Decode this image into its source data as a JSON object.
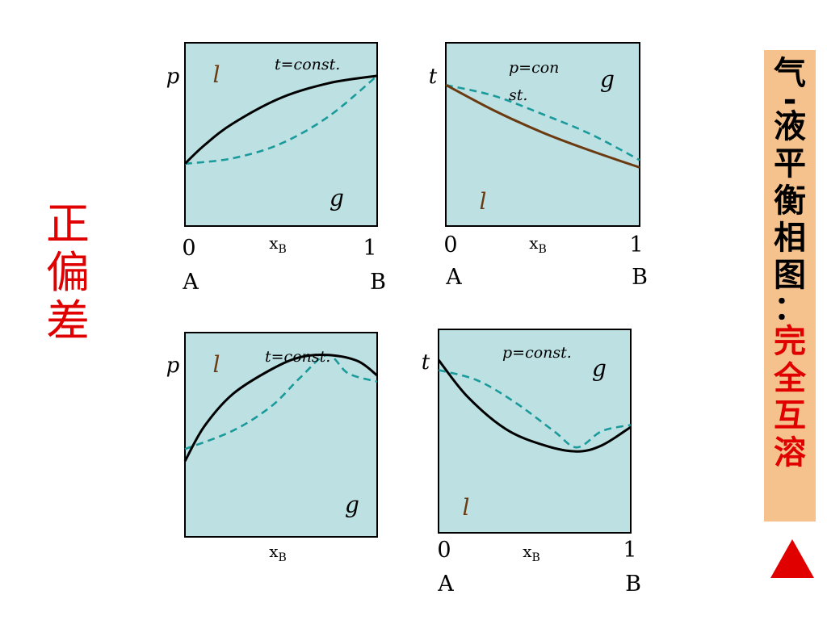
{
  "side_panel": {
    "title_chars": [
      "气",
      "-",
      "液",
      "平",
      "衡",
      "相",
      "图",
      "："
    ],
    "highlight_chars": [
      "完",
      "全",
      "互",
      "溶"
    ]
  },
  "left_label_chars": [
    "正",
    "偏",
    "差"
  ],
  "diagrams": [
    {
      "y_axis_label": "p",
      "condition_lines": [
        "t=const."
      ],
      "liquid_label": "l",
      "gas_label": "g",
      "x_axis_label": "x",
      "x_axis_subscript": "B",
      "x_tick_left": "0",
      "x_tick_right": "1",
      "left_component": "A",
      "right_component": "B",
      "liquid_curve": {
        "color": "#000000",
        "points": [
          [
            0,
            0.34
          ],
          [
            0.1,
            0.44
          ],
          [
            0.25,
            0.56
          ],
          [
            0.5,
            0.7
          ],
          [
            0.75,
            0.78
          ],
          [
            1.0,
            0.82
          ]
        ]
      },
      "vapor_curve": {
        "color": "#1a9a9a",
        "points": [
          [
            0,
            0.34
          ],
          [
            0.25,
            0.37
          ],
          [
            0.5,
            0.45
          ],
          [
            0.75,
            0.6
          ],
          [
            1.0,
            0.82
          ]
        ]
      }
    },
    {
      "y_axis_label": "t",
      "condition_lines": [
        "p=con",
        "st."
      ],
      "liquid_label": "l",
      "gas_label": "g",
      "x_axis_label": "x",
      "x_axis_subscript": "B",
      "x_tick_left": "0",
      "x_tick_right": "1",
      "left_component": "A",
      "right_component": "B",
      "liquid_curve": {
        "color": "#6b3a10",
        "points": [
          [
            0,
            0.77
          ],
          [
            0.25,
            0.63
          ],
          [
            0.5,
            0.51
          ],
          [
            0.75,
            0.41
          ],
          [
            1.0,
            0.32
          ]
        ]
      },
      "vapor_curve": {
        "color": "#1a9a9a",
        "points": [
          [
            0,
            0.77
          ],
          [
            0.25,
            0.71
          ],
          [
            0.5,
            0.61
          ],
          [
            0.75,
            0.5
          ],
          [
            1.0,
            0.36
          ]
        ]
      }
    },
    {
      "y_axis_label": "p",
      "condition_lines": [
        "t=const."
      ],
      "liquid_label": "l",
      "gas_label": "g",
      "x_axis_label": "x",
      "x_axis_subscript": "B",
      "x_tick_left": "",
      "x_tick_right": "",
      "left_component": "",
      "right_component": "",
      "liquid_curve": {
        "color": "#000000",
        "points": [
          [
            0,
            0.37
          ],
          [
            0.1,
            0.54
          ],
          [
            0.25,
            0.7
          ],
          [
            0.45,
            0.82
          ],
          [
            0.6,
            0.88
          ],
          [
            0.75,
            0.89
          ],
          [
            0.9,
            0.86
          ],
          [
            1.0,
            0.79
          ]
        ]
      },
      "vapor_curve": {
        "color": "#1a9a9a",
        "points": [
          [
            0,
            0.43
          ],
          [
            0.25,
            0.52
          ],
          [
            0.45,
            0.64
          ],
          [
            0.6,
            0.78
          ],
          [
            0.74,
            0.89
          ],
          [
            0.85,
            0.8
          ],
          [
            1.0,
            0.76
          ]
        ]
      }
    },
    {
      "y_axis_label": "t",
      "condition_lines": [
        "p=const."
      ],
      "liquid_label": "l",
      "gas_label": "g",
      "x_axis_label": "x",
      "x_axis_subscript": "B",
      "x_tick_left": "0",
      "x_tick_right": "1",
      "left_component": "A",
      "right_component": "B",
      "liquid_curve": {
        "color": "#000000",
        "points": [
          [
            0,
            0.85
          ],
          [
            0.15,
            0.67
          ],
          [
            0.35,
            0.51
          ],
          [
            0.55,
            0.43
          ],
          [
            0.72,
            0.4
          ],
          [
            0.85,
            0.43
          ],
          [
            1.0,
            0.52
          ]
        ]
      },
      "vapor_curve": {
        "color": "#1a9a9a",
        "points": [
          [
            0,
            0.8
          ],
          [
            0.2,
            0.75
          ],
          [
            0.4,
            0.64
          ],
          [
            0.6,
            0.5
          ],
          [
            0.72,
            0.42
          ],
          [
            0.85,
            0.5
          ],
          [
            1.0,
            0.53
          ]
        ]
      }
    }
  ]
}
